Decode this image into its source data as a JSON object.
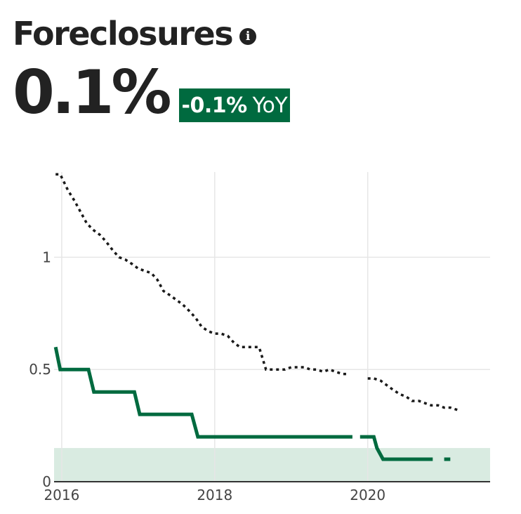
{
  "header": {
    "title": "Foreclosures",
    "info_icon": "info-icon",
    "value": "0.1%",
    "yoy_change": "-0.1%",
    "yoy_suffix": "YoY",
    "accent_color": "#006a3f"
  },
  "chart_data": {
    "type": "line",
    "title": "",
    "xlabel": "",
    "ylabel": "",
    "x_ticks": [
      "2016",
      "2018",
      "2020"
    ],
    "y_ticks": [
      "0",
      "0.5",
      "1"
    ],
    "xlim": [
      2015.9,
      2021.6
    ],
    "ylim": [
      0,
      1.38
    ],
    "grid": true,
    "legend": "none",
    "highlight_band": {
      "y_range": [
        0,
        0.15
      ],
      "color": "#d9ebe1"
    },
    "series": [
      {
        "style": "dotted",
        "color": "#1a1a1a",
        "x": [
          2015.92,
          2015.98,
          2016.08,
          2016.17,
          2016.25,
          2016.33,
          2016.42,
          2016.5,
          2016.58,
          2016.67,
          2016.75,
          2016.83,
          2016.92,
          2017.0,
          2017.08,
          2017.17,
          2017.25,
          2017.33,
          2017.42,
          2017.5,
          2017.58,
          2017.67,
          2017.75,
          2017.83,
          2017.92,
          2018.0,
          2018.08,
          2018.17,
          2018.25,
          2018.33,
          2018.42,
          2018.5,
          2018.58,
          2018.67,
          2018.75,
          2018.83,
          2018.92,
          2019.0,
          2019.08,
          2019.17,
          2019.25,
          2019.33,
          2019.42,
          2019.5,
          2019.58,
          2019.67,
          2019.75,
          2019.92,
          2020.0,
          2020.08,
          2020.17,
          2020.25,
          2020.33,
          2020.42,
          2020.5,
          2020.58,
          2020.67,
          2020.75,
          2020.83,
          2020.92,
          2021.0,
          2021.08,
          2021.17
        ],
        "y": [
          1.37,
          1.37,
          1.3,
          1.25,
          1.2,
          1.15,
          1.12,
          1.1,
          1.07,
          1.03,
          1.0,
          0.99,
          0.97,
          0.95,
          0.94,
          0.93,
          0.9,
          0.85,
          0.83,
          0.81,
          0.79,
          0.76,
          0.73,
          0.69,
          0.67,
          0.66,
          0.66,
          0.65,
          0.62,
          0.6,
          0.6,
          0.6,
          0.6,
          0.5,
          0.5,
          0.5,
          0.5,
          0.51,
          0.51,
          0.51,
          0.5,
          0.5,
          0.49,
          0.5,
          0.49,
          0.48,
          0.48,
          null,
          0.46,
          0.46,
          0.45,
          0.43,
          0.41,
          0.39,
          0.38,
          0.36,
          0.36,
          0.35,
          0.34,
          0.34,
          0.33,
          0.33,
          0.32
        ]
      },
      {
        "style": "step",
        "color": "#006a3f",
        "x": [
          2015.92,
          2015.98,
          2016.35,
          2016.42,
          2016.95,
          2017.02,
          2017.7,
          2017.78,
          2018.0,
          2018.5,
          2019.0,
          2019.5,
          2019.8,
          null,
          2019.9,
          2020.08,
          2020.12,
          2020.2,
          2020.5,
          2020.75,
          2020.85,
          null,
          2021.0,
          2021.08
        ],
        "y": [
          0.6,
          0.5,
          0.5,
          0.4,
          0.4,
          0.3,
          0.3,
          0.2,
          0.2,
          0.2,
          0.2,
          0.2,
          0.2,
          null,
          0.2,
          0.2,
          0.15,
          0.1,
          0.1,
          0.1,
          0.1,
          null,
          0.1,
          0.1
        ]
      }
    ]
  }
}
